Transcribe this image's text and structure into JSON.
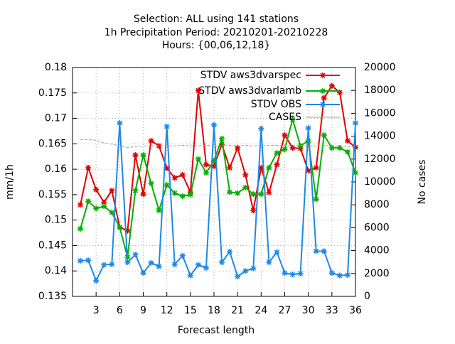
{
  "chart_data": {
    "type": "line",
    "title": [
      "Selection: ALL using   141 stations",
      "1h Precipitation   Period: 20210201-20210228",
      "Hours: {00,06,12,18}"
    ],
    "xlabel": "Forecast length",
    "ylabel": "mm/1h",
    "y2label": "No cases",
    "x": [
      1,
      2,
      3,
      4,
      5,
      6,
      7,
      8,
      9,
      10,
      11,
      12,
      13,
      14,
      15,
      16,
      17,
      18,
      19,
      20,
      21,
      22,
      23,
      24,
      25,
      26,
      27,
      28,
      29,
      30,
      31,
      32,
      33,
      34,
      35,
      36
    ],
    "xlim": [
      0,
      36
    ],
    "xticks": [
      3,
      6,
      9,
      12,
      15,
      18,
      21,
      24,
      27,
      30,
      33,
      36
    ],
    "ylim": [
      0.135,
      0.18
    ],
    "yticks": [
      0.135,
      0.14,
      0.145,
      0.15,
      0.155,
      0.16,
      0.165,
      0.17,
      0.175,
      0.18
    ],
    "y2lim": [
      0,
      20000
    ],
    "y2ticks": [
      0,
      2000,
      4000,
      6000,
      8000,
      10000,
      12000,
      14000,
      16000,
      18000,
      20000
    ],
    "grid": true,
    "legend": "top-right",
    "series": [
      {
        "name": "STDV aws3dvarspec",
        "color": "#e00000",
        "values": [
          0.153,
          0.1603,
          0.156,
          0.1535,
          0.1558,
          0.1486,
          0.1479,
          0.1628,
          0.1551,
          0.1656,
          0.1646,
          0.1602,
          0.1583,
          0.1589,
          0.1555,
          0.1755,
          0.1609,
          0.1606,
          0.1649,
          0.1603,
          0.1642,
          0.1589,
          0.1519,
          0.1603,
          0.1554,
          0.1609,
          0.1667,
          0.1642,
          0.1641,
          0.1597,
          0.1603,
          0.174,
          0.1764,
          0.1751,
          0.1656,
          0.1643
        ]
      },
      {
        "name": "STDV aws3dvarlamb",
        "color": "#00b000",
        "values": [
          0.1483,
          0.1537,
          0.1523,
          0.1527,
          0.1515,
          0.1486,
          0.1427,
          0.1558,
          0.1628,
          0.1572,
          0.1519,
          0.1569,
          0.1553,
          0.1547,
          0.155,
          0.162,
          0.1593,
          0.1617,
          0.166,
          0.1555,
          0.1553,
          0.1564,
          0.1551,
          0.1551,
          0.1603,
          0.1632,
          0.1639,
          0.1698,
          0.1646,
          0.1656,
          0.1541,
          0.1667,
          0.1642,
          0.1642,
          0.1634,
          0.1593
        ]
      },
      {
        "name": "STDV OBS",
        "color": "#1e88e5",
        "values": [
          0.142,
          0.1421,
          0.1381,
          0.1412,
          0.1413,
          0.1691,
          0.1417,
          0.1432,
          0.1396,
          0.1416,
          0.1409,
          0.1684,
          0.1413,
          0.143,
          0.1391,
          0.1412,
          0.1406,
          0.1687,
          0.1417,
          0.1438,
          0.1389,
          0.14,
          0.1405,
          0.168,
          0.1417,
          0.1437,
          0.1396,
          0.1393,
          0.1395,
          0.1681,
          0.1439,
          0.1439,
          0.1396,
          0.1391,
          0.1392,
          0.1691
        ]
      },
      {
        "name": "CASES",
        "color": "#a0a0a0",
        "axis": "y2",
        "values": [
          13700,
          13700,
          13650,
          13400,
          13300,
          13150,
          13000,
          13100,
          13150,
          13150,
          13200,
          13150,
          13150,
          13200,
          13150,
          13150,
          13200,
          13150,
          13150,
          13200,
          13150,
          13200,
          13150,
          13150,
          13200,
          13200,
          13200,
          13150,
          13200,
          13150,
          13150,
          13200,
          13150,
          13150,
          13100,
          13050
        ]
      }
    ]
  }
}
